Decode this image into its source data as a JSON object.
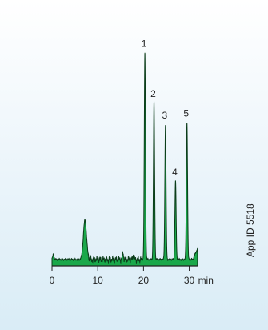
{
  "app_id": "App ID 5518",
  "colors": {
    "trace_fill": "#1aa84a",
    "trace_stroke": "#0b3d1a",
    "axis": "#222222",
    "background_top": "#ffffff",
    "background_bottom": "#d9ecf6"
  },
  "chart_data": {
    "type": "area",
    "xlabel": "",
    "ylabel": "",
    "x_unit": "min",
    "xlim": [
      0,
      32
    ],
    "ylim": [
      0,
      100
    ],
    "x_ticks": [
      0,
      10,
      20,
      30
    ],
    "x_tick_labels": [
      "0",
      "10",
      "20",
      "30"
    ],
    "grid": false,
    "baseline": 3,
    "peaks": [
      {
        "label": "",
        "x": 7.2,
        "height": 18,
        "width": 0.35
      },
      {
        "label": "",
        "x": 15.5,
        "height": 3,
        "width": 0.12
      },
      {
        "label": "",
        "x": 17.8,
        "height": 2,
        "width": 0.12
      },
      {
        "label": "1",
        "x": 20.3,
        "height": 95,
        "width": 0.13
      },
      {
        "label": "2",
        "x": 22.3,
        "height": 72,
        "width": 0.13
      },
      {
        "label": "3",
        "x": 24.8,
        "height": 62,
        "width": 0.13
      },
      {
        "label": "4",
        "x": 27.0,
        "height": 36,
        "width": 0.13
      },
      {
        "label": "5",
        "x": 29.5,
        "height": 63,
        "width": 0.13
      }
    ]
  }
}
